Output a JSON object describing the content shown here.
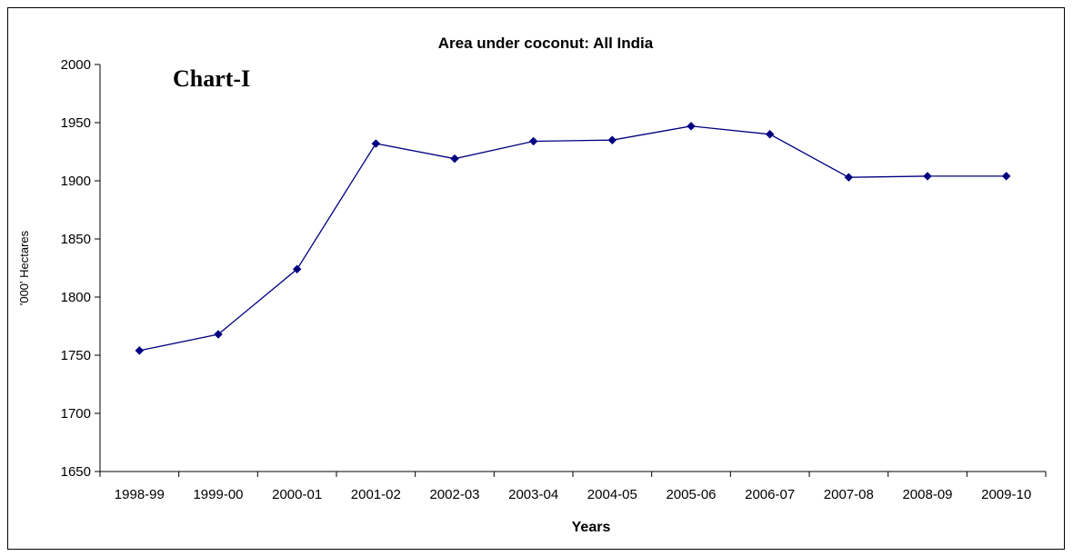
{
  "chart_data": {
    "type": "line",
    "title": "Area under coconut: All India",
    "annotation": "Chart-I",
    "xlabel": "Years",
    "ylabel": "'000' Hectares",
    "categories": [
      "1998-99",
      "1999-00",
      "2000-01",
      "2001-02",
      "2002-03",
      "2003-04",
      "2004-05",
      "2005-06",
      "2006-07",
      "2007-08",
      "2008-09",
      "2009-10"
    ],
    "series": [
      {
        "values": [
          1754,
          1768,
          1824,
          1932,
          1919,
          1934,
          1935,
          1947,
          1940,
          1903,
          1904,
          1904
        ]
      }
    ],
    "ylim": [
      1650,
      2000
    ],
    "yticks": [
      1650,
      1700,
      1750,
      1800,
      1850,
      1900,
      1950,
      2000
    ],
    "grid": false,
    "legend": "none",
    "colors": {
      "line": "#000080",
      "marker": "#000080"
    }
  }
}
